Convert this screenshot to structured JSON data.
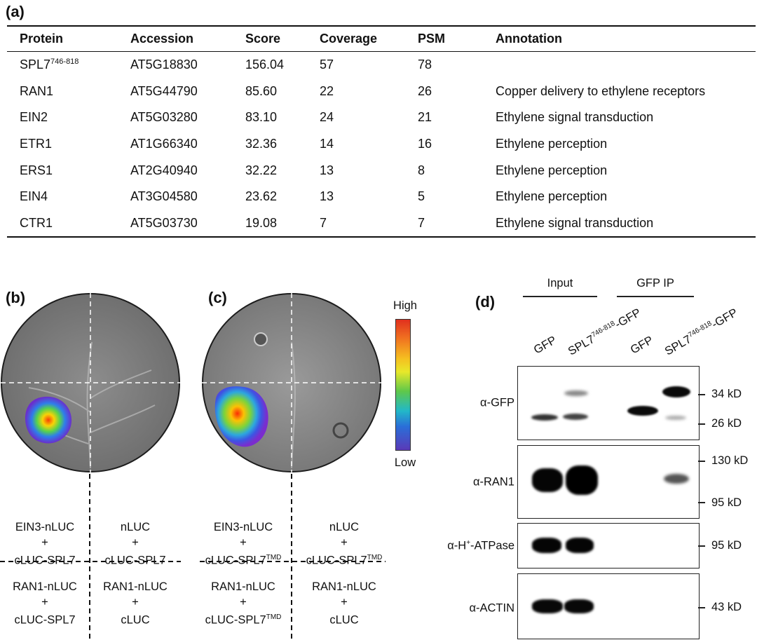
{
  "panel_a": {
    "letter": "(a)",
    "columns": [
      "Protein",
      "Accession",
      "Score",
      "Coverage",
      "PSM",
      "Annotation"
    ],
    "rows": [
      {
        "protein": "SPL7",
        "protein_sup": "746-818",
        "accession": "AT5G18830",
        "score": "156.04",
        "coverage": "57",
        "psm": "78",
        "annotation": ""
      },
      {
        "protein": "RAN1",
        "protein_sup": "",
        "accession": "AT5G44790",
        "score": "85.60",
        "coverage": "22",
        "psm": "26",
        "annotation": "Copper delivery to ethylene receptors"
      },
      {
        "protein": "EIN2",
        "protein_sup": "",
        "accession": "AT5G03280",
        "score": "83.10",
        "coverage": "24",
        "psm": "21",
        "annotation": "Ethylene signal transduction"
      },
      {
        "protein": "ETR1",
        "protein_sup": "",
        "accession": "AT1G66340",
        "score": "32.36",
        "coverage": "14",
        "psm": "16",
        "annotation": "Ethylene perception"
      },
      {
        "protein": "ERS1",
        "protein_sup": "",
        "accession": "AT2G40940",
        "score": "32.22",
        "coverage": "13",
        "psm": "8",
        "annotation": "Ethylene perception"
      },
      {
        "protein": "EIN4",
        "protein_sup": "",
        "accession": "AT3G04580",
        "score": "23.62",
        "coverage": "13",
        "psm": "5",
        "annotation": "Ethylene perception"
      },
      {
        "protein": "CTR1",
        "protein_sup": "",
        "accession": "AT5G03730",
        "score": "19.08",
        "coverage": "7",
        "psm": "7",
        "annotation": "Ethylene signal transduction"
      }
    ]
  },
  "panel_b": {
    "letter": "(b)",
    "cells": {
      "tl": {
        "l1": "EIN3-nLUC",
        "l2": "+",
        "l3": "cLUC-SPL7",
        "l3_sup": ""
      },
      "tr": {
        "l1": "nLUC",
        "l2": "+",
        "l3": "cLUC-SPL7",
        "l3_sup": ""
      },
      "bl": {
        "l1": "RAN1-nLUC",
        "l2": "+",
        "l3": "cLUC-SPL7",
        "l3_sup": ""
      },
      "br": {
        "l1": "RAN1-nLUC",
        "l2": "+",
        "l3": "cLUC",
        "l3_sup": ""
      }
    }
  },
  "panel_c": {
    "letter": "(c)",
    "cells": {
      "tl": {
        "l1": "EIN3-nLUC",
        "l2": "+",
        "l3": "cLUC-SPL7",
        "l3_sup": "TMD"
      },
      "tr": {
        "l1": "nLUC",
        "l2": "+",
        "l3": "cLUC-SPL7",
        "l3_sup": "TMD"
      },
      "bl": {
        "l1": "RAN1-nLUC",
        "l2": "+",
        "l3": "cLUC-SPL7",
        "l3_sup": "TMD"
      },
      "br": {
        "l1": "RAN1-nLUC",
        "l2": "+",
        "l3": "cLUC",
        "l3_sup": ""
      }
    }
  },
  "scale": {
    "high": "High",
    "low": "Low"
  },
  "panel_d": {
    "letter": "(d)",
    "group_input": "Input",
    "group_ip": "GFP IP",
    "lanes": [
      {
        "name": "GFP",
        "sup": ""
      },
      {
        "name": "SPL7",
        "sup": "746-818",
        "suffix": "-GFP"
      },
      {
        "name": "GFP",
        "sup": ""
      },
      {
        "name": "SPL7",
        "sup": "746-818",
        "suffix": "-GFP"
      }
    ],
    "blots": [
      {
        "antibody": "α-GFP",
        "antibody_sup": "",
        "markers": [
          "34 kD",
          "26 kD"
        ]
      },
      {
        "antibody": "α-RAN1",
        "antibody_sup": "",
        "markers": [
          "130 kD",
          "95 kD"
        ]
      },
      {
        "antibody": "α-H",
        "antibody_sup": "+",
        "antibody_suffix": "-ATPase",
        "markers": [
          "95 kD"
        ]
      },
      {
        "antibody": "α-ACTIN",
        "antibody_sup": "",
        "markers": [
          "43 kD"
        ]
      }
    ]
  }
}
